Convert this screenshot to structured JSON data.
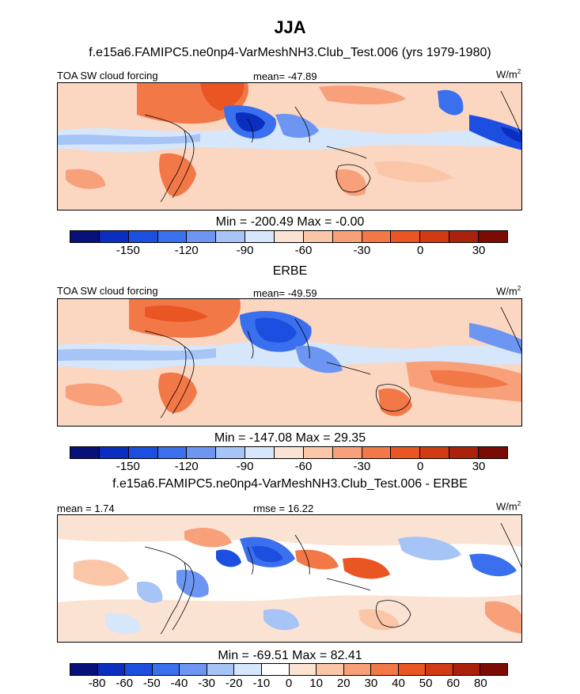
{
  "page": {
    "title": "JJA"
  },
  "panels": [
    {
      "heading": "f.e15a6.FAMIPC5.ne0np4-VarMeshNH3.Club_Test.006 (yrs 1979-1980)",
      "variable": "TOA SW cloud forcing",
      "mean_text": "mean= -47.89",
      "units": "W/m",
      "units_exp": "2",
      "minmax": "Min = -200.49 Max =  -0.00",
      "colorbar_ticks": [
        "-150",
        "-120",
        "-90",
        "-60",
        "-30",
        "0",
        "30"
      ]
    },
    {
      "heading": "ERBE",
      "variable": "TOA SW cloud forcing",
      "mean_text": "mean= -49.59",
      "units": "W/m",
      "units_exp": "2",
      "minmax": "Min = -147.08 Max =  29.35",
      "colorbar_ticks": [
        "-150",
        "-120",
        "-90",
        "-60",
        "-30",
        "0",
        "30"
      ]
    },
    {
      "heading": "f.e15a6.FAMIPC5.ne0np4-VarMeshNH3.Club_Test.006 - ERBE",
      "mean_text": "mean =   1.74",
      "rmse_text": "rmse =  16.22",
      "units": "W/m",
      "units_exp": "2",
      "minmax": "Min = -69.51 Max =  82.41",
      "colorbar_ticks": [
        "-80",
        "-60",
        "-50",
        "-40",
        "-30",
        "-20",
        "-10",
        "0",
        "10",
        "20",
        "30",
        "40",
        "50",
        "60",
        "80"
      ]
    }
  ],
  "colors": {
    "abs_scale": [
      "#08107a",
      "#0a2fc0",
      "#1c4fe0",
      "#3a6fee",
      "#6c96f2",
      "#a7c4f6",
      "#d6e6fb",
      "#fbe3d4",
      "#fbc6a8",
      "#f7a07a",
      "#f27848",
      "#ea5524",
      "#d23a14",
      "#aa220c",
      "#7a0c04"
    ],
    "diff_scale": [
      "#08107a",
      "#0a2fc0",
      "#1c4fe0",
      "#3a6fee",
      "#6c96f2",
      "#a7c4f6",
      "#d6e6fb",
      "#ffffff",
      "#fbe3d4",
      "#fbc6a8",
      "#f7a07a",
      "#f27848",
      "#ea5524",
      "#d23a14",
      "#aa220c",
      "#7a0c04"
    ]
  },
  "chart_data": [
    {
      "type": "heatmap",
      "title": "f.e15a6.FAMIPC5.ne0np4-VarMeshNH3.Club_Test.006 (yrs 1979-1980)",
      "variable": "TOA SW cloud forcing",
      "units": "W/m2",
      "season": "JJA",
      "mean": -47.89,
      "min": -200.49,
      "max": -0.0,
      "contour_levels": [
        -150,
        -135,
        -120,
        -105,
        -90,
        -75,
        -60,
        -45,
        -30,
        -15,
        0,
        15,
        30,
        45
      ]
    },
    {
      "type": "heatmap",
      "title": "ERBE",
      "variable": "TOA SW cloud forcing",
      "units": "W/m2",
      "season": "JJA",
      "mean": -49.59,
      "min": -147.08,
      "max": 29.35,
      "contour_levels": [
        -150,
        -135,
        -120,
        -105,
        -90,
        -75,
        -60,
        -45,
        -30,
        -15,
        0,
        15,
        30,
        45
      ]
    },
    {
      "type": "heatmap",
      "title": "f.e15a6.FAMIPC5.ne0np4-VarMeshNH3.Club_Test.006 - ERBE",
      "units": "W/m2",
      "season": "JJA",
      "mean": 1.74,
      "rmse": 16.22,
      "min": -69.51,
      "max": 82.41,
      "contour_levels": [
        -80,
        -60,
        -50,
        -40,
        -30,
        -20,
        -10,
        0,
        10,
        20,
        30,
        40,
        50,
        60,
        80
      ]
    }
  ]
}
